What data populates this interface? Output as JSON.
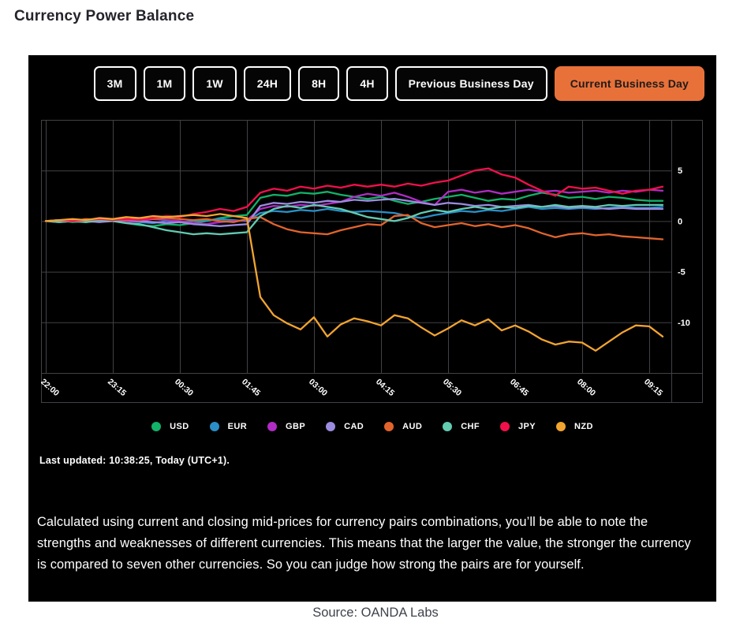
{
  "page": {
    "title": "Currency Power Balance",
    "source": "Source: OANDA Labs"
  },
  "panel": {
    "accent_color": "#e8713a",
    "timeframe_buttons": [
      {
        "label": "3M",
        "selected": false
      },
      {
        "label": "1M",
        "selected": false
      },
      {
        "label": "1W",
        "selected": false
      },
      {
        "label": "24H",
        "selected": false
      },
      {
        "label": "8H",
        "selected": false
      },
      {
        "label": "4H",
        "selected": false
      },
      {
        "label": "Previous Business Day",
        "selected": false
      },
      {
        "label": "Current Business Day",
        "selected": true
      }
    ],
    "last_updated": "Last updated: 10:38:25, Today (UTC+1).",
    "description": "Calculated using current and closing mid-prices for currency pairs combinations, you’ll be able to note the strengths and weaknesses of different currencies. This means that the larger the value, the stronger the currency is compared to seven other currencies. So you can judge how strong the pairs are for yourself."
  },
  "chart_data": {
    "type": "line",
    "title": "",
    "xlabel": "",
    "ylabel": "",
    "x_start": "22:00",
    "x_interval_minutes": 15,
    "x_tick_labels": [
      "22:00",
      "23:15",
      "00:30",
      "01:45",
      "03:00",
      "04:15",
      "05:30",
      "06:45",
      "08:00",
      "09:15"
    ],
    "x_tick_every_n_points": 5,
    "ylim": [
      -15,
      10
    ],
    "yticks_labeled": [
      5,
      0,
      -5,
      -10
    ],
    "grid": true,
    "grid_color": "#424247",
    "background": "#000000",
    "legend_position": "bottom",
    "series": [
      {
        "name": "USD",
        "color": "#12b269",
        "values": [
          0,
          0.1,
          -0.1,
          0,
          0.1,
          0,
          -0.2,
          -0.4,
          -0.5,
          -0.3,
          -0.4,
          -0.2,
          0,
          0.3,
          0.5,
          0.6,
          2.3,
          2.6,
          2.5,
          2.8,
          2.7,
          2.9,
          2.6,
          2.4,
          2.2,
          2.4,
          2.0,
          1.7,
          1.9,
          2.2,
          2.4,
          2.6,
          2.3,
          2.0,
          2.2,
          2.1,
          2.5,
          2.8,
          2.6,
          2.3,
          2.4,
          2.2,
          2.4,
          2.3,
          2.1,
          2.0,
          2.0
        ]
      },
      {
        "name": "EUR",
        "color": "#2a8fc7",
        "values": [
          0,
          0.1,
          0,
          -0.1,
          0,
          0.1,
          0,
          -0.1,
          -0.2,
          0,
          -0.1,
          0,
          0.1,
          0.2,
          0.1,
          0,
          0.8,
          1.0,
          0.9,
          1.1,
          1.0,
          1.2,
          1.0,
          0.9,
          1.0,
          0.9,
          0.8,
          0.5,
          0.3,
          0.6,
          0.8,
          1.0,
          0.9,
          1.1,
          1.0,
          1.2,
          1.4,
          1.2,
          1.3,
          1.2,
          1.3,
          1.2,
          1.3,
          1.4,
          1.3,
          1.3,
          1.4
        ]
      },
      {
        "name": "GBP",
        "color": "#b02cc4",
        "values": [
          0,
          -0.1,
          0,
          0.1,
          0,
          0,
          -0.1,
          0,
          0.2,
          0.1,
          0,
          -0.2,
          -0.3,
          -0.1,
          0,
          0.1,
          1.2,
          1.5,
          1.4,
          1.6,
          1.5,
          1.7,
          1.9,
          2.4,
          2.7,
          2.5,
          2.8,
          2.4,
          1.9,
          1.6,
          2.9,
          3.1,
          2.8,
          3.0,
          2.7,
          2.9,
          3.1,
          2.9,
          3.0,
          2.8,
          2.9,
          3.0,
          2.8,
          3.0,
          2.9,
          3.1,
          3.0
        ]
      },
      {
        "name": "CAD",
        "color": "#9c8ce0",
        "values": [
          0,
          0,
          0.1,
          0,
          -0.1,
          0,
          0.1,
          0,
          -0.1,
          -0.2,
          -0.1,
          -0.3,
          -0.4,
          -0.5,
          -0.4,
          -0.3,
          1.5,
          1.8,
          1.7,
          1.9,
          1.8,
          2.0,
          1.9,
          2.1,
          2.0,
          2.1,
          2.2,
          2.0,
          1.8,
          1.6,
          1.8,
          1.7,
          1.5,
          1.6,
          1.4,
          1.5,
          1.6,
          1.4,
          1.5,
          1.3,
          1.4,
          1.3,
          1.2,
          1.3,
          1.2,
          1.2,
          1.2
        ]
      },
      {
        "name": "AUD",
        "color": "#e2642d",
        "values": [
          0,
          0.1,
          0,
          0.2,
          0.1,
          0.2,
          0.1,
          0.3,
          0.2,
          0.3,
          0.2,
          0.1,
          0.2,
          0,
          -0.1,
          0.2,
          0.4,
          -0.3,
          -0.8,
          -1.1,
          -1.2,
          -1.3,
          -0.9,
          -0.6,
          -0.3,
          -0.4,
          0.5,
          0.6,
          -0.2,
          -0.6,
          -0.4,
          -0.2,
          -0.5,
          -0.3,
          -0.6,
          -0.4,
          -0.7,
          -1.2,
          -1.6,
          -1.3,
          -1.2,
          -1.4,
          -1.3,
          -1.5,
          -1.6,
          -1.7,
          -1.8
        ]
      },
      {
        "name": "CHF",
        "color": "#62cbb2",
        "values": [
          0,
          -0.1,
          0,
          -0.1,
          0.1,
          0,
          -0.2,
          -0.3,
          -0.6,
          -0.9,
          -1.1,
          -1.3,
          -1.2,
          -1.3,
          -1.2,
          -1.1,
          0.5,
          1.2,
          1.5,
          1.3,
          1.6,
          1.4,
          1.2,
          0.8,
          0.4,
          0.2,
          0.0,
          0.3,
          0.8,
          1.1,
          0.9,
          1.2,
          1.4,
          1.2,
          1.4,
          1.3,
          1.5,
          1.4,
          1.6,
          1.4,
          1.5,
          1.4,
          1.6,
          1.5,
          1.6,
          1.6,
          1.6
        ]
      },
      {
        "name": "JPY",
        "color": "#f2104b",
        "values": [
          0,
          0.1,
          0,
          0.1,
          0.2,
          0.1,
          0.2,
          0.1,
          0.3,
          0.5,
          0.4,
          0.7,
          0.9,
          1.2,
          1.0,
          1.4,
          2.8,
          3.2,
          3.0,
          3.4,
          3.2,
          3.5,
          3.3,
          3.6,
          3.4,
          3.6,
          3.4,
          3.7,
          3.5,
          3.8,
          4.0,
          4.5,
          5.0,
          5.2,
          4.6,
          4.3,
          3.6,
          3.0,
          2.5,
          3.4,
          3.2,
          3.3,
          3.0,
          2.7,
          3.0,
          3.1,
          3.4
        ]
      },
      {
        "name": "NZD",
        "color": "#f2a430",
        "values": [
          0,
          0.1,
          0.2,
          0.1,
          0.3,
          0.2,
          0.4,
          0.3,
          0.5,
          0.4,
          0.5,
          0.6,
          0.5,
          0.7,
          0.5,
          0.3,
          -7.5,
          -9.3,
          -10.1,
          -10.7,
          -9.5,
          -11.4,
          -10.2,
          -9.6,
          -9.9,
          -10.3,
          -9.3,
          -9.6,
          -10.5,
          -11.3,
          -10.6,
          -9.8,
          -10.3,
          -9.7,
          -10.8,
          -10.3,
          -10.9,
          -11.7,
          -12.2,
          -11.9,
          -12.0,
          -12.8,
          -11.9,
          -11.0,
          -10.3,
          -10.4,
          -11.4
        ]
      }
    ]
  }
}
